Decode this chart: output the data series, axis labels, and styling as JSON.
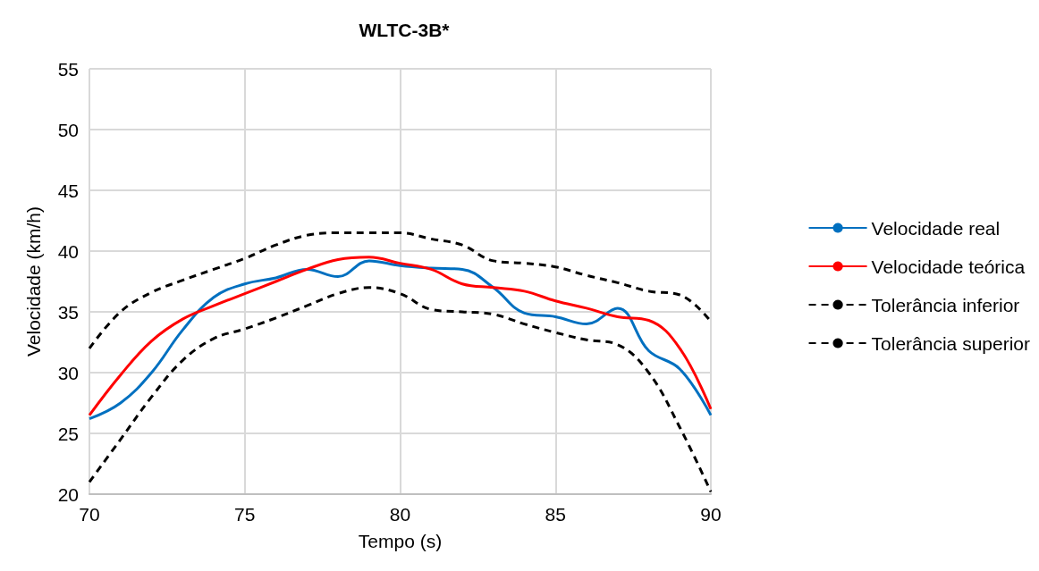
{
  "chart_data": {
    "type": "line",
    "title": "WLTC-3B*",
    "xlabel": "Tempo (s)",
    "ylabel": "Velocidade (km/h)",
    "x": [
      70,
      71,
      72,
      73,
      74,
      75,
      76,
      77,
      78,
      79,
      80,
      81,
      82,
      83,
      84,
      85,
      86,
      87,
      88,
      89,
      90
    ],
    "xlim": [
      70,
      90
    ],
    "xticks": [
      70,
      75,
      80,
      85,
      90
    ],
    "ylim": [
      20,
      55
    ],
    "yticks": [
      20,
      25,
      30,
      35,
      40,
      45,
      50,
      55
    ],
    "grid": true,
    "legend": "right",
    "marker": "none",
    "series": [
      {
        "name": "Velocidade real",
        "color": "#0070c0",
        "line_style": "solid",
        "values": [
          26.2,
          27.5,
          30,
          33.5,
          36.2,
          37.3,
          37.8,
          38.5,
          37.9,
          39.2,
          38.8,
          38.6,
          38.5,
          37,
          34.9,
          34.6,
          34,
          35.3,
          31.8,
          30.3,
          26.5
        ]
      },
      {
        "name": "Velocidade teórica",
        "color": "#ff0000",
        "line_style": "solid",
        "values": [
          26.5,
          29.8,
          32.6,
          34.4,
          35.5,
          36.5,
          37.5,
          38.5,
          39.3,
          39.5,
          39,
          38.5,
          37.3,
          37,
          36.7,
          35.9,
          35.3,
          34.6,
          34.3,
          32,
          27
        ]
      },
      {
        "name": "Tolerância inferior",
        "color": "#000000",
        "line_style": "dashed",
        "values": [
          21,
          24.5,
          28,
          31,
          32.8,
          33.6,
          34.5,
          35.5,
          36.5,
          37,
          36.5,
          35.2,
          35,
          34.8,
          34,
          33.3,
          32.7,
          32.3,
          30,
          25.5,
          20.2
        ]
      },
      {
        "name": "Tolerância superior",
        "color": "#000000",
        "line_style": "dashed",
        "values": [
          32,
          35,
          36.6,
          37.6,
          38.5,
          39.4,
          40.5,
          41.3,
          41.5,
          41.5,
          41.5,
          41,
          40.5,
          39.2,
          39,
          38.7,
          38,
          37.4,
          36.7,
          36.4,
          34.2
        ]
      }
    ]
  }
}
